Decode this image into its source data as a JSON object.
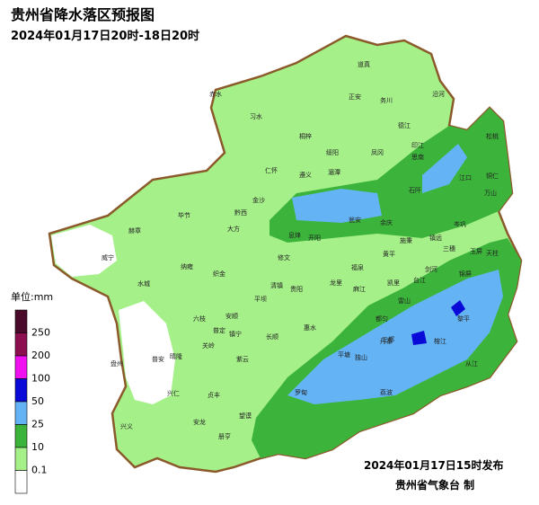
{
  "header": {
    "title": "贵州省降水落区预报图",
    "subtitle": "2024年01月17日20时-18日20时"
  },
  "legend": {
    "unit": "单位:mm",
    "items": [
      {
        "label": "250",
        "color": "#4a0a2a"
      },
      {
        "label": "200",
        "color": "#8c1050"
      },
      {
        "label": "100",
        "color": "#f010f0"
      },
      {
        "label": "50",
        "color": "#0a0ad8"
      },
      {
        "label": "25",
        "color": "#64b4f5"
      },
      {
        "label": "10",
        "color": "#3cb43c"
      },
      {
        "label": "0.1",
        "color": "#a6f08a"
      }
    ],
    "below": "#ffffff"
  },
  "footer": {
    "issued": "2024年01月17日15时发布",
    "agency": "贵州省气象台 制"
  },
  "labels": [
    "道真",
    "正安",
    "务川",
    "沿河",
    "赤水",
    "习水",
    "桐梓",
    "绥阳",
    "凤冈",
    "德江",
    "印江",
    "松桃",
    "湄潭",
    "思南",
    "仁怀",
    "遵义",
    "余庆",
    "石阡",
    "江口",
    "铜仁",
    "金沙",
    "瓮安",
    "镇远",
    "岑巩",
    "玉屏",
    "万山",
    "黔西",
    "开阳",
    "黄平",
    "施秉",
    "三穗",
    "天柱",
    "毕节",
    "赫章",
    "大方",
    "息烽",
    "修文",
    "福泉",
    "麻江",
    "剑河",
    "锦屏",
    "威宁",
    "纳雍",
    "织金",
    "清镇",
    "贵阳",
    "龙里",
    "凯里",
    "台江",
    "雷山",
    "黎平",
    "水城",
    "六枝",
    "普定",
    "安顺",
    "平坝",
    "长顺",
    "惠水",
    "都匀",
    "丹寨",
    "榕江",
    "从江",
    "盘州",
    "普安",
    "晴隆",
    "关岭",
    "镇宁",
    "紫云",
    "罗甸",
    "平塘",
    "独山",
    "三都",
    "荔波",
    "兴仁",
    "贞丰",
    "望谟",
    "安龙",
    "册亨",
    "兴义"
  ]
}
